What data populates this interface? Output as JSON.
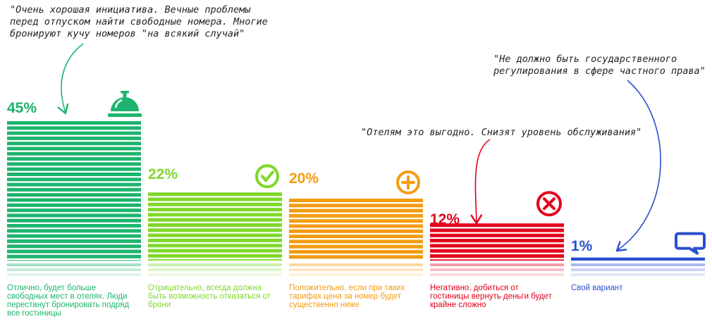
{
  "colors": {
    "green_dark": "#1db56d",
    "green_light": "#7fd829",
    "orange": "#f39c12",
    "red": "#e3001b",
    "blue": "#2b4fcf",
    "quote_text": "#222222"
  },
  "chart_data": {
    "type": "bar",
    "categories": [
      "Отлично, будет больше свободных мест в отелях. Люди перестанут бронировать подряд все гостиницы",
      "Отрицательно, всегда должна быть возможность отказаться от брони",
      "Положительно, если при таких тарифах цена за номер будет существенно ниже",
      "Негативно, добиться от гостиницы вернуть деньги будет крайне сложно",
      "Свой вариант"
    ],
    "values": [
      45,
      22,
      20,
      12,
      1
    ],
    "value_labels": [
      "45%",
      "22%",
      "20%",
      "12%",
      "1%"
    ],
    "bar_colors": [
      "#1db56d",
      "#7fd829",
      "#f39c12",
      "#e3001b",
      "#2b4fcf"
    ],
    "icons": [
      "service-bell-icon",
      "checkmark-circle-icon",
      "plus-circle-icon",
      "cross-circle-icon",
      "chat-bubble-icon"
    ],
    "ylim": [
      0,
      45
    ]
  },
  "quotes": {
    "q1": "\"Очень хорошая инициатива. Вечные проблемы\nперед отпуском найти свободные номера. Многие\nбронируют кучу номеров \"на всякий случай\"",
    "q2": "\"Отелям это выгодно. Снизят уровень обслуживания\"",
    "q3": "\"Не должно быть государственного\nрегулирования в сфере частного права\""
  }
}
